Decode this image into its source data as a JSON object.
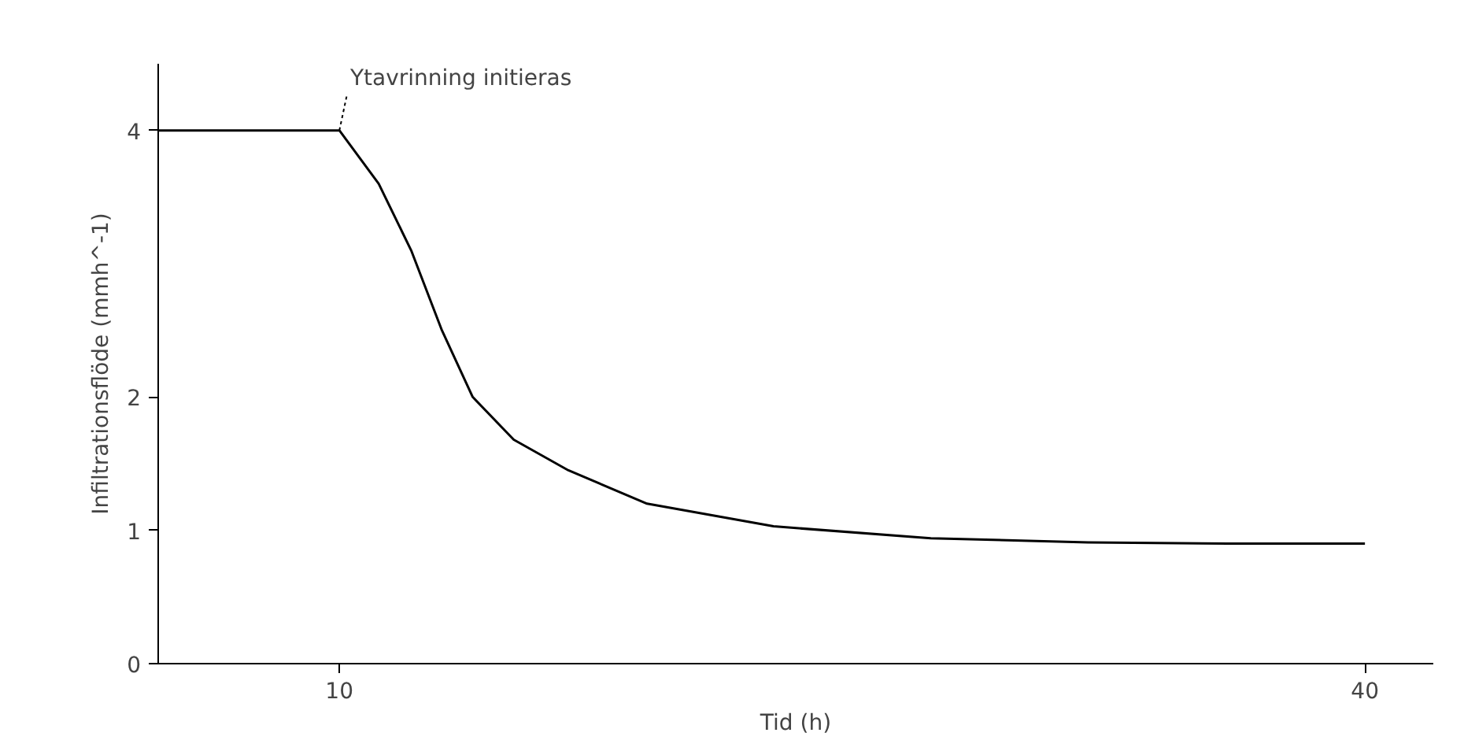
{
  "chart_data": {
    "type": "line",
    "xlabel": "Tid (h)",
    "ylabel": "Infiltrationsflöde (mmh^-1)",
    "x": [
      4.7,
      10,
      11.15,
      12.1,
      13,
      13.9,
      15.1,
      16.7,
      19,
      22.7,
      27.3,
      31.9,
      36,
      40
    ],
    "series": [
      {
        "color": "#000000",
        "values": [
          4,
          4,
          3.6,
          3.1,
          2.5,
          2.0,
          1.68,
          1.45,
          1.2,
          1.03,
          0.94,
          0.91,
          0.9,
          0.9
        ]
      }
    ],
    "xlim": [
      4.7,
      42
    ],
    "ylim": [
      0,
      4.5
    ],
    "xticks": [
      10,
      40
    ],
    "yticks": [
      0,
      1,
      2,
      4
    ],
    "grid": false,
    "annotations": [
      {
        "text": "Ytavrinning initieras",
        "x": 10,
        "y": 4
      }
    ]
  }
}
